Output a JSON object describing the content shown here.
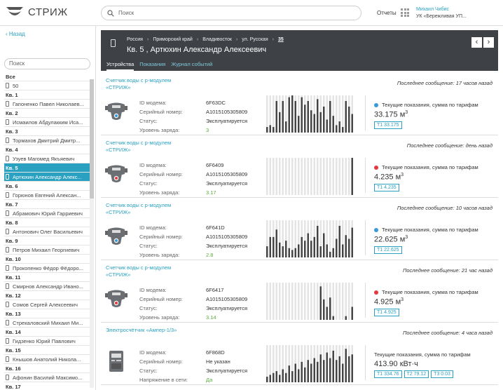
{
  "app": {
    "logo_text": "СТРИЖ",
    "search_placeholder": "Поиск",
    "reports_label": "Отчеты",
    "user_name": "Михаил Чибис",
    "user_org": "УК «Бережливая УП..."
  },
  "sidebar": {
    "back_label": "Назад",
    "search_placeholder": "Поиск",
    "items": [
      {
        "kind": "head",
        "label": "Все"
      },
      {
        "kind": "row",
        "label": "50"
      },
      {
        "kind": "head",
        "label": "Кв. 1"
      },
      {
        "kind": "row",
        "label": "Гапоненко Павел Николаев..."
      },
      {
        "kind": "head",
        "label": "Кв. 2"
      },
      {
        "kind": "row",
        "label": "Исмаилов Абдулакким Иса..."
      },
      {
        "kind": "head",
        "label": "Кв. 3"
      },
      {
        "kind": "row",
        "label": "Тормахов Дмитрий Дмитр..."
      },
      {
        "kind": "head",
        "label": "Кв. 4"
      },
      {
        "kind": "row",
        "label": "Узуев Магомед Якъяевич"
      },
      {
        "kind": "head",
        "label": "Кв. 5",
        "selected": true
      },
      {
        "kind": "row",
        "label": "Артюхин Александр Алекс...",
        "selected": true
      },
      {
        "kind": "head",
        "label": "Кв. 6"
      },
      {
        "kind": "row",
        "label": "Горюнов Евгений Алексан..."
      },
      {
        "kind": "head",
        "label": "Кв. 7"
      },
      {
        "kind": "row",
        "label": "Абрамович Юрий Гарриевич"
      },
      {
        "kind": "head",
        "label": "Кв. 8"
      },
      {
        "kind": "row",
        "label": "Антонович Олег Васильевич"
      },
      {
        "kind": "head",
        "label": "Кв. 9"
      },
      {
        "kind": "row",
        "label": "Петров Михаил Георгиевич"
      },
      {
        "kind": "head",
        "label": "Кв. 10"
      },
      {
        "kind": "row",
        "label": "Прокопенко Фёдор Фёдоро..."
      },
      {
        "kind": "head",
        "label": "Кв. 11"
      },
      {
        "kind": "row",
        "label": "Смирнов Александр Ивано..."
      },
      {
        "kind": "head",
        "label": "Кв. 12"
      },
      {
        "kind": "row",
        "label": "Сомов Сергей Алексеевич"
      },
      {
        "kind": "head",
        "label": "Кв. 13"
      },
      {
        "kind": "row",
        "label": "Стрекаловский Михаил Ми..."
      },
      {
        "kind": "head",
        "label": "Кв. 14"
      },
      {
        "kind": "row",
        "label": "Гидзенко Юрий Павлович"
      },
      {
        "kind": "head",
        "label": "Кв. 15"
      },
      {
        "kind": "row",
        "label": "Кнышов Анатолий Никола..."
      },
      {
        "kind": "head",
        "label": "Кв. 16"
      },
      {
        "kind": "row",
        "label": "Афонин Василий Максимо..."
      },
      {
        "kind": "head",
        "label": "Кв. 17"
      }
    ]
  },
  "header": {
    "breadcrumbs": [
      "Россия",
      "Приморский край",
      "Владивосток",
      "ул. Русская"
    ],
    "breadcrumb_last": "35",
    "title": "Кв. 5 , Артюхин Александр Алексеевич",
    "prev_label": "‹",
    "next_label": "›",
    "tabs": [
      {
        "label": "Устройства",
        "active": true
      },
      {
        "label": "Показания",
        "active": false
      },
      {
        "label": "Журнал событий",
        "active": false
      }
    ]
  },
  "colors": {
    "accent": "#2aa1c0",
    "dark_header": "#3e4247",
    "status_ok": "#3a9ad9",
    "status_alert": "#e0393e",
    "charge_green": "#5aad3e"
  },
  "devices": [
    {
      "title_line1": "Счетчик воды с р-модулем",
      "title_line2": "«СТРИЖ»",
      "last_message": "Последнее сообщение: 17 часов назад",
      "icon": "water-meter-icon",
      "status_color": "blue",
      "props": [
        {
          "k": "ID модема:",
          "v": "6F63DC"
        },
        {
          "k": "Серийный номер:",
          "v": "A1015105305809"
        },
        {
          "k": "Статус:",
          "v": "Эксплуатируется"
        },
        {
          "k": "Уровень заряда:",
          "v": "3",
          "green": true
        }
      ],
      "reading_label": "Текущие показания, сумма по тарифам",
      "reading_value": "33.175 м",
      "reading_unit_sup": "3",
      "tariffs": [
        "Т1 33.175"
      ],
      "history": [
        0.15,
        0.2,
        0.15,
        0.85,
        0.55,
        0.85,
        0.3,
        0.95,
        1.0,
        0.85,
        0.45,
        0.95,
        0.75,
        0.85,
        0.6,
        0.5,
        0.9,
        0.55,
        0.7,
        0.35,
        0.85,
        0.45,
        0.2,
        0.3,
        0.15,
        0.85,
        0.7,
        0.5
      ]
    },
    {
      "title_line1": "Счетчик воды с р-модулем",
      "title_line2": "«СТРИЖ»",
      "last_message": "Последнее сообщение: день назад",
      "icon": "water-meter-icon",
      "status_color": "red",
      "props": [
        {
          "k": "ID модема:",
          "v": "6F6409"
        },
        {
          "k": "Серийный номер:",
          "v": "A1015105305809"
        },
        {
          "k": "Статус:",
          "v": "Эксплуатируется"
        },
        {
          "k": "Уровень заряда:",
          "v": "3.17",
          "green": true
        }
      ],
      "reading_label": "Текущие показания, сумма по тарифам",
      "reading_value": "4.235 м",
      "reading_unit_sup": "3",
      "tariffs": [
        "Т1 4.235"
      ],
      "history": [
        0,
        0,
        0,
        0,
        0,
        0,
        0,
        0,
        0,
        0,
        0,
        0,
        0,
        0,
        0,
        0,
        0,
        0,
        0,
        0,
        0,
        0,
        0,
        0,
        0,
        0,
        0,
        1.0
      ]
    },
    {
      "title_line1": "Счетчик воды с р-модулем",
      "title_line2": "«СТРИЖ»",
      "last_message": "Последнее сообщение: 10 часов назад",
      "icon": "water-meter-icon",
      "status_color": "blue",
      "props": [
        {
          "k": "ID модема:",
          "v": "6F641D"
        },
        {
          "k": "Серийный номер:",
          "v": "A1015105305809"
        },
        {
          "k": "Статус:",
          "v": "Эксплуатируется"
        },
        {
          "k": "Уровень заряда:",
          "v": "2.8",
          "green": true
        }
      ],
      "reading_label": "Текущие показания, сумма по тарифам",
      "reading_value": "22.625 м",
      "reading_unit_sup": "3",
      "tariffs": [
        "Т1 22.625"
      ],
      "history": [
        0.3,
        0.55,
        0.55,
        0.75,
        0.4,
        0.3,
        0.45,
        0.25,
        0.2,
        0.25,
        0.35,
        0.55,
        0.45,
        0.65,
        0.45,
        0.55,
        0.85,
        0.3,
        0.65,
        0.35,
        0.15,
        0.25,
        0.5,
        0.85,
        0.35,
        0.6,
        0.5,
        0.8
      ]
    },
    {
      "title_line1": "Счетчик воды с р-модулем",
      "title_line2": "«СТРИЖ»",
      "last_message": "Последнее сообщение: 21 час назад",
      "icon": "water-meter-icon",
      "status_color": "red",
      "props": [
        {
          "k": "ID модема:",
          "v": "6F6417"
        },
        {
          "k": "Серийный номер:",
          "v": "A1015105305809"
        },
        {
          "k": "Статус:",
          "v": "Эксплуатируется"
        },
        {
          "k": "Уровень заряда:",
          "v": "3.14",
          "green": true
        }
      ],
      "reading_label": "Текущие показания, сумма по тарифам",
      "reading_value": "4.925 м",
      "reading_unit_sup": "3",
      "tariffs": [
        "Т1 4.925"
      ],
      "history": [
        0,
        0,
        0,
        0,
        0,
        0,
        0,
        0,
        0,
        0,
        0,
        0,
        0,
        0,
        0,
        0,
        0,
        0.9,
        0.55,
        0.35,
        0.6,
        0.1,
        0,
        0,
        0,
        0.1,
        0,
        0.35
      ]
    },
    {
      "title_line1": "Электросчётчик «Ампер-1/3»",
      "title_line2": "",
      "last_message": "Последнее сообщение: 4 часа назад",
      "icon": "electricity-meter-icon",
      "status_color": "none",
      "props": [
        {
          "k": "ID модема:",
          "v": "6F868D"
        },
        {
          "k": "Серийный номер:",
          "v": "Не указан"
        },
        {
          "k": "Статус:",
          "v": "Эксплуатируется"
        },
        {
          "k": "Напряжение в сети:",
          "v": "Да",
          "green": true
        }
      ],
      "reading_label": "Текущие показания, сумма по тарифам",
      "reading_value": "413.90 кВт·ч",
      "reading_unit_sup": "",
      "tariffs": [
        "Т1 334.76",
        "Т2 79.12",
        "Т3 0.03"
      ],
      "history": [
        0.15,
        0.2,
        0.25,
        0.3,
        0.2,
        0.35,
        0.25,
        0.45,
        0.3,
        0.5,
        0.35,
        0.55,
        0.4,
        0.6,
        0.5,
        0.65,
        0.55,
        0.75,
        0.6,
        0.8,
        0.65,
        0.85,
        0.6,
        0.7,
        0.5,
        0.9,
        0.7,
        0.75
      ]
    }
  ]
}
